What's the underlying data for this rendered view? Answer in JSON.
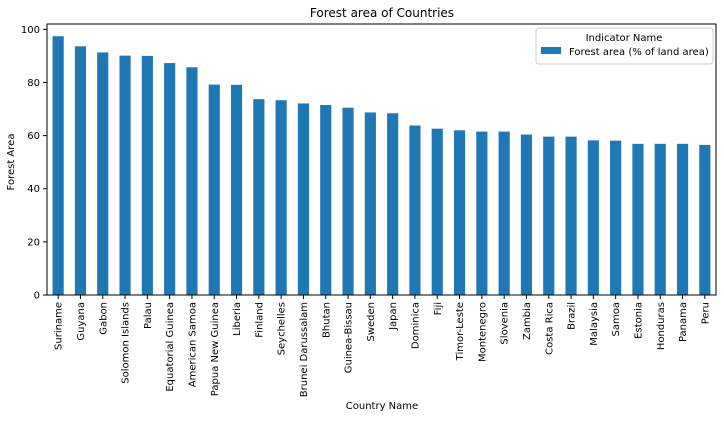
{
  "colors": {
    "bar": "#1f77b4",
    "axis": "#000000",
    "legend_border": "#cccccc"
  },
  "chart_data": {
    "type": "bar",
    "title": "Forest area of Countries",
    "xlabel": "Country Name",
    "ylabel": "Forest Area",
    "ylim": [
      0,
      102
    ],
    "yticks": [
      0,
      20,
      40,
      60,
      80,
      100
    ],
    "grid": false,
    "legend": {
      "title": "Indicator Name",
      "placement": "top-right"
    },
    "categories": [
      "Suriname",
      "Guyana",
      "Gabon",
      "Solomon Islands",
      "Palau",
      "Equatorial Guinea",
      "American Samoa",
      "Papua New Guinea",
      "Liberia",
      "Finland",
      "Seychelles",
      "Brunei Darussalam",
      "Bhutan",
      "Guinea-Bissau",
      "Sweden",
      "Japan",
      "Dominica",
      "Fiji",
      "Timor-Leste",
      "Montenegro",
      "Slovenia",
      "Zambia",
      "Costa Rica",
      "Brazil",
      "Malaysia",
      "Samoa",
      "Estonia",
      "Honduras",
      "Panama",
      "Peru"
    ],
    "series": [
      {
        "name": "Forest area (% of land area)",
        "values": [
          97.4,
          93.6,
          91.3,
          90.1,
          90.0,
          87.3,
          85.7,
          79.2,
          79.1,
          73.7,
          73.3,
          72.1,
          71.5,
          70.5,
          68.7,
          68.4,
          63.8,
          62.6,
          62.0,
          61.5,
          61.5,
          60.4,
          59.6,
          59.6,
          58.2,
          58.1,
          56.9,
          56.9,
          56.9,
          56.5
        ]
      }
    ]
  }
}
